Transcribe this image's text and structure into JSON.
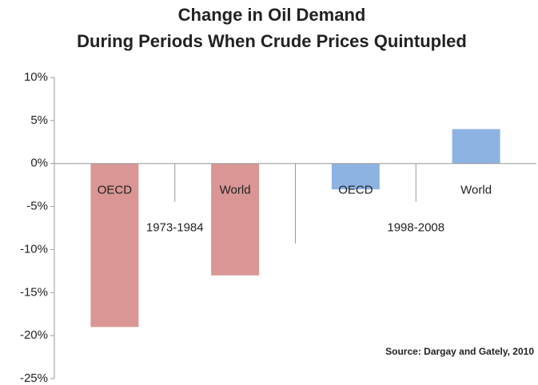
{
  "chart_data": {
    "type": "bar",
    "title": [
      "Change in Oil Demand",
      "During Periods When Crude Prices Quintupled"
    ],
    "categories": [
      "OECD",
      "World",
      "OECD",
      "World"
    ],
    "groups": [
      "1973-1984",
      "1998-2008"
    ],
    "values": [
      -19,
      -13,
      -3,
      4
    ],
    "colors": [
      "#d99694",
      "#d99694",
      "#8db3e2",
      "#8db3e2"
    ],
    "ylim": [
      -25,
      10
    ],
    "yticks": [
      {
        "value": -25,
        "label": "-25%"
      },
      {
        "value": -20,
        "label": "-20%"
      },
      {
        "value": -15,
        "label": "-15%"
      },
      {
        "value": -10,
        "label": "-10%"
      },
      {
        "value": -5,
        "label": "-5%"
      },
      {
        "value": 0,
        "label": "0%"
      },
      {
        "value": 5,
        "label": "5%"
      },
      {
        "value": 10,
        "label": "10%"
      }
    ],
    "annotation": "Source: Dargay and Gately, 2010",
    "grid": false
  }
}
